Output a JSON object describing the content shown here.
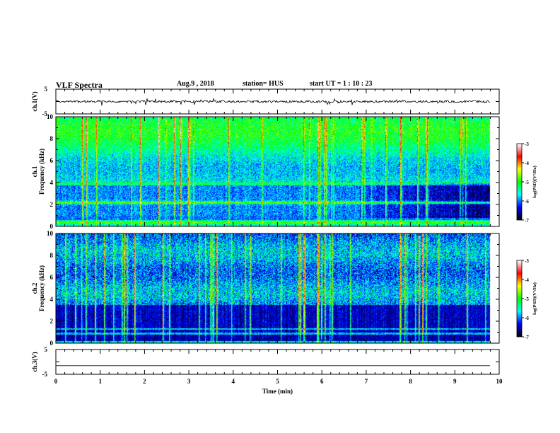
{
  "header": {
    "title": "VLF Spectra",
    "date": "Aug.9 , 2018",
    "station": "station= HUS",
    "start": "start UT = 1 : 10 : 23"
  },
  "chart_data": [
    {
      "type": "line",
      "panel": "ch1-waveform",
      "ylabel": "ch.1(V)",
      "ylim": [
        -5,
        5
      ],
      "yticks": [
        "5",
        "-5"
      ],
      "x_range_min": [
        0,
        10
      ],
      "baseline_v": 0.0,
      "data_extent_min": 9.8
    },
    {
      "type": "heatmap",
      "panel": "ch1-spectrogram",
      "ylabel": "ch.1\nFrequency (kHz)",
      "ylim": [
        0,
        10
      ],
      "yticks": [
        "0",
        "2",
        "4",
        "6",
        "8",
        "10"
      ],
      "x_range_min": [
        0,
        10
      ],
      "data_extent_min": 9.8,
      "colorbar": {
        "label": "log(PSD)(V²/Hz)",
        "range": [
          -7,
          -3
        ],
        "ticks": [
          "-3",
          "-4",
          "-5",
          "-6",
          "-7"
        ]
      }
    },
    {
      "type": "heatmap",
      "panel": "ch2-spectrogram",
      "ylabel": "ch.2\nFrequency (kHz)",
      "ylim": [
        0,
        10
      ],
      "yticks": [
        "0",
        "2",
        "4",
        "6",
        "8",
        "10"
      ],
      "x_range_min": [
        0,
        10
      ],
      "data_extent_min": 9.8,
      "colorbar": {
        "label": "log(PSD)(V²/Hz)",
        "range": [
          -7,
          -3
        ],
        "ticks": [
          "-3",
          "-4",
          "-5",
          "-6",
          "-7"
        ]
      }
    },
    {
      "type": "line",
      "panel": "ch3-waveform",
      "ylabel": "ch.3(V)",
      "ylim": [
        -5,
        5
      ],
      "yticks": [
        "5",
        "-5"
      ],
      "x_range_min": [
        0,
        10
      ],
      "baseline_v": -1.5,
      "data_extent_min": 9.8
    }
  ],
  "xaxis": {
    "label": "Time (min)",
    "ticks": [
      "0",
      "1",
      "2",
      "3",
      "4",
      "5",
      "6",
      "7",
      "8",
      "9",
      "10"
    ]
  },
  "colormap": [
    "#000000",
    "#0000ff",
    "#00ffff",
    "#00ff00",
    "#ffff00",
    "#ff0000",
    "#ffffff"
  ]
}
